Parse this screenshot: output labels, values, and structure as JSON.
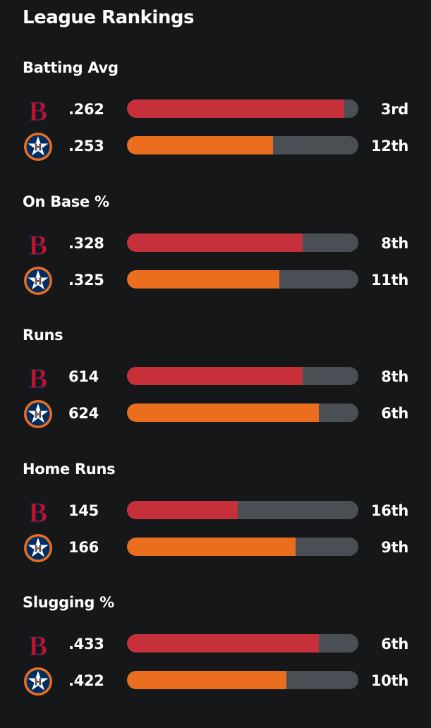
{
  "title": "League Rankings",
  "colors": {
    "background": "#151719",
    "red_sox": "#c5303b",
    "astros": "#eb6e1f",
    "track": "#4a4f56"
  },
  "sections": [
    {
      "name": "Batting Avg",
      "rows": [
        {
          "team_icon": "red-sox-logo-icon",
          "value": ".262",
          "rank": "3rd",
          "fill_pct": 94
        },
        {
          "team_icon": "astros-logo-icon",
          "value": ".253",
          "rank": "12th",
          "fill_pct": 63
        }
      ]
    },
    {
      "name": "On Base %",
      "rows": [
        {
          "team_icon": "red-sox-logo-icon",
          "value": ".328",
          "rank": "8th",
          "fill_pct": 76
        },
        {
          "team_icon": "astros-logo-icon",
          "value": ".325",
          "rank": "11th",
          "fill_pct": 66
        }
      ]
    },
    {
      "name": "Runs",
      "rows": [
        {
          "team_icon": "red-sox-logo-icon",
          "value": "614",
          "rank": "8th",
          "fill_pct": 76
        },
        {
          "team_icon": "astros-logo-icon",
          "value": "624",
          "rank": "6th",
          "fill_pct": 83
        }
      ]
    },
    {
      "name": "Home Runs",
      "rows": [
        {
          "team_icon": "red-sox-logo-icon",
          "value": "145",
          "rank": "16th",
          "fill_pct": 48
        },
        {
          "team_icon": "astros-logo-icon",
          "value": "166",
          "rank": "9th",
          "fill_pct": 73
        }
      ]
    },
    {
      "name": "Slugging %",
      "rows": [
        {
          "team_icon": "red-sox-logo-icon",
          "value": ".433",
          "rank": "6th",
          "fill_pct": 83
        },
        {
          "team_icon": "astros-logo-icon",
          "value": ".422",
          "rank": "10th",
          "fill_pct": 69
        }
      ]
    }
  ]
}
